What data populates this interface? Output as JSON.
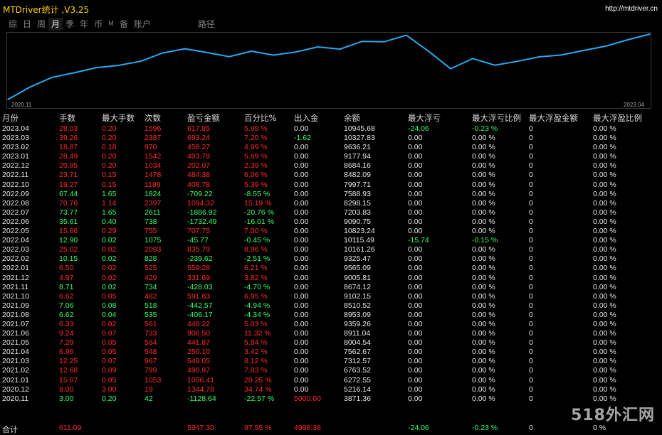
{
  "header": {
    "title": "MTDriver统计 ,V3.25",
    "url": "http://mtdriver.cn"
  },
  "tabs": [
    {
      "label": "综",
      "active": false,
      "small": false
    },
    {
      "label": "日",
      "active": false,
      "small": false
    },
    {
      "label": "周",
      "active": false,
      "small": false
    },
    {
      "label": "月",
      "active": true,
      "small": false
    },
    {
      "label": "季",
      "active": false,
      "small": false
    },
    {
      "label": "年",
      "active": false,
      "small": false
    },
    {
      "label": "币",
      "active": false,
      "small": false
    },
    {
      "label": "M",
      "active": false,
      "small": true
    },
    {
      "label": "备",
      "active": false,
      "small": false
    },
    {
      "label": "账户",
      "active": false,
      "small": false
    },
    {
      "label": "路径",
      "active": false,
      "small": false
    }
  ],
  "chart_data": {
    "type": "line",
    "x_start_label": "2020.11",
    "x_end_label": "2023.04",
    "line_color": "#2aa8f0",
    "x": [
      "2020.11",
      "2020.12",
      "2021.01",
      "2021.02",
      "2021.03",
      "2021.04",
      "2021.05",
      "2021.06",
      "2021.07",
      "2021.08",
      "2021.09",
      "2021.10",
      "2021.11",
      "2021.12",
      "2022.01",
      "2022.02",
      "2022.03",
      "2022.04",
      "2022.05",
      "2022.06",
      "2022.07",
      "2022.08",
      "2022.09",
      "2022.10",
      "2022.11",
      "2022.12",
      "2023.01",
      "2023.02",
      "2023.03",
      "2023.04"
    ],
    "y": [
      3871.36,
      5216.14,
      6272.55,
      6763.52,
      7312.57,
      7562.67,
      8004.54,
      8911.04,
      9359.26,
      8953.09,
      8510.52,
      9102.15,
      8674.12,
      9005.81,
      9565.09,
      9325.47,
      10161.26,
      10115.49,
      10823.24,
      9090.75,
      7203.83,
      8298.15,
      7588.93,
      7997.71,
      8482.09,
      8684.16,
      9177.94,
      9636.21,
      10327.83,
      10945.68
    ]
  },
  "columns": [
    "月份",
    "手数",
    "最大手数",
    "次数",
    "盈亏金额",
    "百分比%",
    "出入金",
    "余额",
    "最大浮亏",
    "最大浮亏比例",
    "最大浮盈金额",
    "最大浮盈比例"
  ],
  "rows": [
    {
      "month": "2023.04",
      "lots": "28.03",
      "max_lots": "0.20",
      "trades": "1596",
      "pnl": "617.85",
      "pct": "5.98 %",
      "flow": "0.00",
      "balance": "10945.68",
      "max_dd": "-24.06",
      "max_dd_pct": "-0.23 %",
      "max_fp": "0",
      "max_fp_pct": "0.00 %",
      "color": "red",
      "flow_color": "white",
      "dd_color": "green"
    },
    {
      "month": "2023.03",
      "lots": "39.26",
      "max_lots": "0.20",
      "trades": "2387",
      "pnl": "693.24",
      "pct": "7.20 %",
      "flow": "-1.62",
      "balance": "10327.83",
      "max_dd": "0.00",
      "max_dd_pct": "0.00 %",
      "max_fp": "0",
      "max_fp_pct": "0.00 %",
      "color": "red",
      "flow_color": "green",
      "dd_color": "white"
    },
    {
      "month": "2023.02",
      "lots": "18.87",
      "max_lots": "0.18",
      "trades": "970",
      "pnl": "458.27",
      "pct": "4.99 %",
      "flow": "0.00",
      "balance": "9636.21",
      "max_dd": "0.00",
      "max_dd_pct": "0.00 %",
      "max_fp": "0",
      "max_fp_pct": "0.00 %",
      "color": "red",
      "flow_color": "white",
      "dd_color": "white"
    },
    {
      "month": "2023.01",
      "lots": "28.49",
      "max_lots": "0.20",
      "trades": "1542",
      "pnl": "493.78",
      "pct": "5.69 %",
      "flow": "0.00",
      "balance": "9177.94",
      "max_dd": "0.00",
      "max_dd_pct": "0.00 %",
      "max_fp": "0",
      "max_fp_pct": "0.00 %",
      "color": "red",
      "flow_color": "white",
      "dd_color": "white"
    },
    {
      "month": "2022.12",
      "lots": "20.85",
      "max_lots": "0.20",
      "trades": "1034",
      "pnl": "202.07",
      "pct": "2.39 %",
      "flow": "0.00",
      "balance": "8684.16",
      "max_dd": "0.00",
      "max_dd_pct": "0.00 %",
      "max_fp": "0",
      "max_fp_pct": "0.00 %",
      "color": "red",
      "flow_color": "white",
      "dd_color": "white"
    },
    {
      "month": "2022.11",
      "lots": "23.71",
      "max_lots": "0.15",
      "trades": "1478",
      "pnl": "484.38",
      "pct": "6.06 %",
      "flow": "0.00",
      "balance": "8482.09",
      "max_dd": "0.00",
      "max_dd_pct": "0.00 %",
      "max_fp": "0",
      "max_fp_pct": "0.00 %",
      "color": "red",
      "flow_color": "white",
      "dd_color": "white"
    },
    {
      "month": "2022.10",
      "lots": "19.27",
      "max_lots": "0.15",
      "trades": "1189",
      "pnl": "408.78",
      "pct": "5.39 %",
      "flow": "0.00",
      "balance": "7997.71",
      "max_dd": "0.00",
      "max_dd_pct": "0.00 %",
      "max_fp": "0",
      "max_fp_pct": "0.00 %",
      "color": "red",
      "flow_color": "white",
      "dd_color": "white"
    },
    {
      "month": "2022.09",
      "lots": "67.44",
      "max_lots": "1.65",
      "trades": "1824",
      "pnl": "-709.22",
      "pct": "-8.55 %",
      "flow": "0.00",
      "balance": "7588.93",
      "max_dd": "0.00",
      "max_dd_pct": "0.00 %",
      "max_fp": "0",
      "max_fp_pct": "0.00 %",
      "color": "green",
      "flow_color": "white",
      "dd_color": "white"
    },
    {
      "month": "2022.08",
      "lots": "70.76",
      "max_lots": "1.14",
      "trades": "2397",
      "pnl": "1094.32",
      "pct": "15.19 %",
      "flow": "0.00",
      "balance": "8298.15",
      "max_dd": "0.00",
      "max_dd_pct": "0.00 %",
      "max_fp": "0",
      "max_fp_pct": "0.00 %",
      "color": "red",
      "flow_color": "white",
      "dd_color": "white"
    },
    {
      "month": "2022.07",
      "lots": "73.77",
      "max_lots": "1.65",
      "trades": "2611",
      "pnl": "-1886.92",
      "pct": "-20.76 %",
      "flow": "0.00",
      "balance": "7203.83",
      "max_dd": "0.00",
      "max_dd_pct": "0.00 %",
      "max_fp": "0",
      "max_fp_pct": "0.00 %",
      "color": "green",
      "flow_color": "white",
      "dd_color": "white"
    },
    {
      "month": "2022.06",
      "lots": "35.61",
      "max_lots": "0.40",
      "trades": "738",
      "pnl": "-1732.49",
      "pct": "-16.01 %",
      "flow": "0.00",
      "balance": "9090.75",
      "max_dd": "0.00",
      "max_dd_pct": "0.00 %",
      "max_fp": "0",
      "max_fp_pct": "0.00 %",
      "color": "green",
      "flow_color": "white",
      "dd_color": "white"
    },
    {
      "month": "2022.05",
      "lots": "15.66",
      "max_lots": "0.29",
      "trades": "755",
      "pnl": "707.75",
      "pct": "7.00 %",
      "flow": "0.00",
      "balance": "10823.24",
      "max_dd": "0.00",
      "max_dd_pct": "0.00 %",
      "max_fp": "0",
      "max_fp_pct": "0.00 %",
      "color": "red",
      "flow_color": "white",
      "dd_color": "white"
    },
    {
      "month": "2022.04",
      "lots": "12.90",
      "max_lots": "0.02",
      "trades": "1075",
      "pnl": "-45.77",
      "pct": "-0.45 %",
      "flow": "0.00",
      "balance": "10115.49",
      "max_dd": "-15.74",
      "max_dd_pct": "-0.15 %",
      "max_fp": "0",
      "max_fp_pct": "0.00 %",
      "color": "green",
      "flow_color": "white",
      "dd_color": "green"
    },
    {
      "month": "2022.03",
      "lots": "25.02",
      "max_lots": "0.02",
      "trades": "2093",
      "pnl": "835.79",
      "pct": "8.96 %",
      "flow": "0.00",
      "balance": "10161.26",
      "max_dd": "0.00",
      "max_dd_pct": "0.00 %",
      "max_fp": "0",
      "max_fp_pct": "0.00 %",
      "color": "red",
      "flow_color": "white",
      "dd_color": "white"
    },
    {
      "month": "2022.02",
      "lots": "10.15",
      "max_lots": "0.02",
      "trades": "828",
      "pnl": "-239.62",
      "pct": "-2.51 %",
      "flow": "0.00",
      "balance": "9325.47",
      "max_dd": "0.00",
      "max_dd_pct": "0.00 %",
      "max_fp": "0",
      "max_fp_pct": "0.00 %",
      "color": "green",
      "flow_color": "white",
      "dd_color": "white"
    },
    {
      "month": "2022.01",
      "lots": "6.50",
      "max_lots": "0.02",
      "trades": "525",
      "pnl": "559.28",
      "pct": "6.21 %",
      "flow": "0.00",
      "balance": "9565.09",
      "max_dd": "0.00",
      "max_dd_pct": "0.00 %",
      "max_fp": "0",
      "max_fp_pct": "0.00 %",
      "color": "red",
      "flow_color": "white",
      "dd_color": "white"
    },
    {
      "month": "2021.12",
      "lots": "4.97",
      "max_lots": "0.02",
      "trades": "429",
      "pnl": "331.69",
      "pct": "3.82 %",
      "flow": "0.00",
      "balance": "9005.81",
      "max_dd": "0.00",
      "max_dd_pct": "0.00 %",
      "max_fp": "0",
      "max_fp_pct": "0.00 %",
      "color": "red",
      "flow_color": "white",
      "dd_color": "white"
    },
    {
      "month": "2021.11",
      "lots": "8.71",
      "max_lots": "0.02",
      "trades": "734",
      "pnl": "-428.03",
      "pct": "-4.70 %",
      "flow": "0.00",
      "balance": "8674.12",
      "max_dd": "0.00",
      "max_dd_pct": "0.00 %",
      "max_fp": "0",
      "max_fp_pct": "0.00 %",
      "color": "green",
      "flow_color": "white",
      "dd_color": "white"
    },
    {
      "month": "2021.10",
      "lots": "6.62",
      "max_lots": "0.05",
      "trades": "482",
      "pnl": "591.63",
      "pct": "6.95 %",
      "flow": "0.00",
      "balance": "9102.15",
      "max_dd": "0.00",
      "max_dd_pct": "0.00 %",
      "max_fp": "0",
      "max_fp_pct": "0.00 %",
      "color": "red",
      "flow_color": "white",
      "dd_color": "white"
    },
    {
      "month": "2021.09",
      "lots": "7.06",
      "max_lots": "0.08",
      "trades": "518",
      "pnl": "-442.57",
      "pct": "-4.94 %",
      "flow": "0.00",
      "balance": "8510.52",
      "max_dd": "0.00",
      "max_dd_pct": "0.00 %",
      "max_fp": "0",
      "max_fp_pct": "0.00 %",
      "color": "green",
      "flow_color": "white",
      "dd_color": "white"
    },
    {
      "month": "2021.08",
      "lots": "6.62",
      "max_lots": "0.04",
      "trades": "535",
      "pnl": "-406.17",
      "pct": "-4.34 %",
      "flow": "0.00",
      "balance": "8953.09",
      "max_dd": "0.00",
      "max_dd_pct": "0.00 %",
      "max_fp": "0",
      "max_fp_pct": "0.00 %",
      "color": "green",
      "flow_color": "white",
      "dd_color": "white"
    },
    {
      "month": "2021.07",
      "lots": "6.33",
      "max_lots": "0.02",
      "trades": "561",
      "pnl": "448.22",
      "pct": "5.03 %",
      "flow": "0.00",
      "balance": "9359.26",
      "max_dd": "0.00",
      "max_dd_pct": "0.00 %",
      "max_fp": "0",
      "max_fp_pct": "0.00 %",
      "color": "red",
      "flow_color": "white",
      "dd_color": "white"
    },
    {
      "month": "2021.06",
      "lots": "9.24",
      "max_lots": "0.07",
      "trades": "733",
      "pnl": "906.50",
      "pct": "11.32 %",
      "flow": "0.00",
      "balance": "8911.04",
      "max_dd": "0.00",
      "max_dd_pct": "0.00 %",
      "max_fp": "0",
      "max_fp_pct": "0.00 %",
      "color": "red",
      "flow_color": "white",
      "dd_color": "white"
    },
    {
      "month": "2021.05",
      "lots": "7.29",
      "max_lots": "0.05",
      "trades": "584",
      "pnl": "441.87",
      "pct": "5.84 %",
      "flow": "0.00",
      "balance": "8004.54",
      "max_dd": "0.00",
      "max_dd_pct": "0.00 %",
      "max_fp": "0",
      "max_fp_pct": "0.00 %",
      "color": "red",
      "flow_color": "white",
      "dd_color": "white"
    },
    {
      "month": "2021.04",
      "lots": "6.96",
      "max_lots": "0.05",
      "trades": "548",
      "pnl": "250.10",
      "pct": "3.42 %",
      "flow": "0.00",
      "balance": "7562.67",
      "max_dd": "0.00",
      "max_dd_pct": "0.00 %",
      "max_fp": "0",
      "max_fp_pct": "0.00 %",
      "color": "red",
      "flow_color": "white",
      "dd_color": "white"
    },
    {
      "month": "2021.03",
      "lots": "12.25",
      "max_lots": "0.07",
      "trades": "967",
      "pnl": "549.05",
      "pct": "8.12 %",
      "flow": "0.00",
      "balance": "7312.57",
      "max_dd": "0.00",
      "max_dd_pct": "0.00 %",
      "max_fp": "0",
      "max_fp_pct": "0.00 %",
      "color": "red",
      "flow_color": "white",
      "dd_color": "white"
    },
    {
      "month": "2021.02",
      "lots": "12.68",
      "max_lots": "0.09",
      "trades": "799",
      "pnl": "490.97",
      "pct": "7.83 %",
      "flow": "0.00",
      "balance": "6763.52",
      "max_dd": "0.00",
      "max_dd_pct": "0.00 %",
      "max_fp": "0",
      "max_fp_pct": "0.00 %",
      "color": "red",
      "flow_color": "white",
      "dd_color": "white"
    },
    {
      "month": "2021.01",
      "lots": "15.07",
      "max_lots": "0.05",
      "trades": "1053",
      "pnl": "1056.41",
      "pct": "20.25 %",
      "flow": "0.00",
      "balance": "6272.55",
      "max_dd": "0.00",
      "max_dd_pct": "0.00 %",
      "max_fp": "0",
      "max_fp_pct": "0.00 %",
      "color": "red",
      "flow_color": "white",
      "dd_color": "white"
    },
    {
      "month": "2020.12",
      "lots": "8.00",
      "max_lots": "3.00",
      "trades": "19",
      "pnl": "1344.78",
      "pct": "34.74 %",
      "flow": "0.00",
      "balance": "5216.14",
      "max_dd": "0.00",
      "max_dd_pct": "0.00 %",
      "max_fp": "0",
      "max_fp_pct": "0.00 %",
      "color": "red",
      "flow_color": "white",
      "dd_color": "white"
    },
    {
      "month": "2020.11",
      "lots": "3.00",
      "max_lots": "0.20",
      "trades": "42",
      "pnl": "-1128.64",
      "pct": "-22.57 %",
      "flow": "5000.00",
      "balance": "3871.36",
      "max_dd": "0.00",
      "max_dd_pct": "0.00 %",
      "max_fp": "0",
      "max_fp_pct": "0.00 %",
      "color": "green",
      "flow_color": "red",
      "dd_color": "white"
    }
  ],
  "total": {
    "label": "合计",
    "lots": "611.09",
    "pnl": "5947.30",
    "pct": "97.55 %",
    "flow": "4998.38",
    "max_dd": "-24.06",
    "max_dd_pct": "-0.23 %",
    "max_fp": "0",
    "max_fp_pct": "0 %"
  },
  "watermark": "518外汇网"
}
